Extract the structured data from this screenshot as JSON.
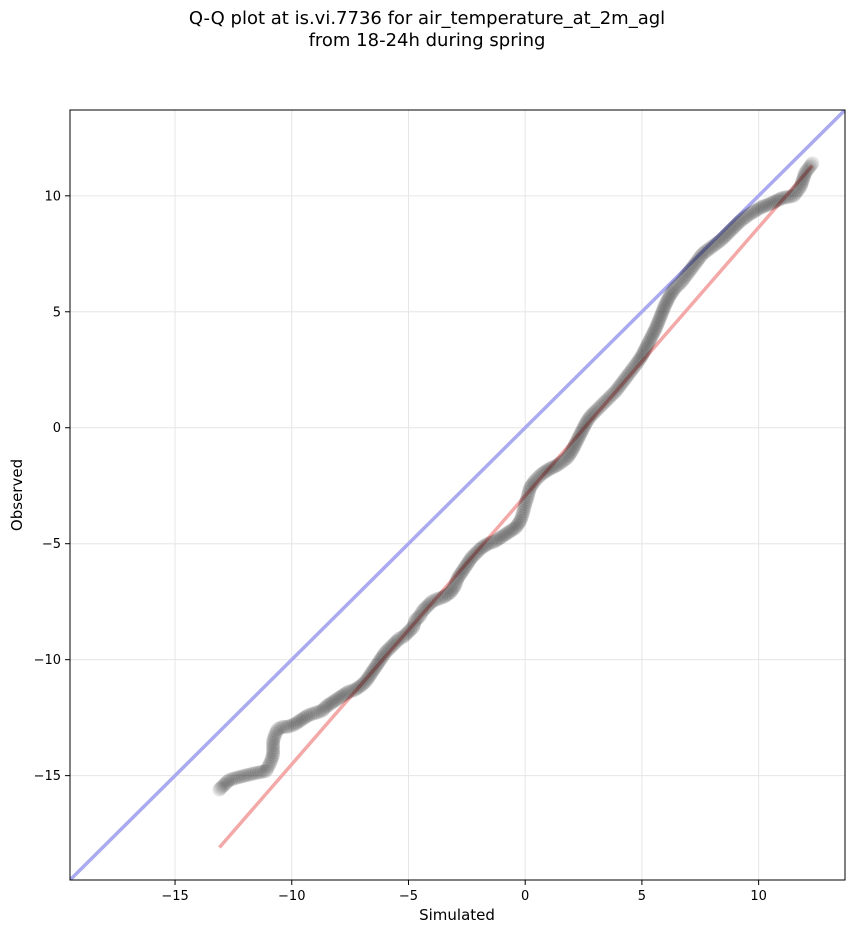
{
  "chart_data": {
    "type": "scatter",
    "title_line1": "Q-Q plot at is.vi.7736 for air_temperature_at_2m_agl",
    "title_line2": "from 18-24h during spring",
    "xlabel": "Simulated",
    "ylabel": "Observed",
    "xlim": [
      -19.5,
      13.7
    ],
    "ylim": [
      -19.5,
      13.7
    ],
    "x_ticks": [
      -15,
      -10,
      -5,
      0,
      5,
      10
    ],
    "y_ticks": [
      -15,
      -10,
      -5,
      0,
      5,
      10
    ],
    "x_tick_labels": [
      "−15",
      "−10",
      "−5",
      "0",
      "5",
      "10"
    ],
    "y_tick_labels": [
      "−15",
      "−10",
      "−5",
      "0",
      "5",
      "10"
    ],
    "grid": true,
    "reference_lines": [
      {
        "kind": "identity",
        "color": "#aaaaf0",
        "from": [
          -19.5,
          -19.5
        ],
        "to": [
          13.7,
          13.7
        ]
      },
      {
        "kind": "fit",
        "color": "#f4a9a9",
        "from": [
          -13.1,
          -18.1
        ],
        "to": [
          12.3,
          11.3
        ]
      }
    ],
    "marker_color": "#000000",
    "points": [
      [
        -13.1,
        -15.6
      ],
      [
        -12.9,
        -15.4
      ],
      [
        -12.7,
        -15.2
      ],
      [
        -12.4,
        -15.1
      ],
      [
        -12.0,
        -15.0
      ],
      [
        -11.6,
        -14.9
      ],
      [
        -11.1,
        -14.8
      ],
      [
        -11.0,
        -14.6
      ],
      [
        -10.9,
        -14.4
      ],
      [
        -10.8,
        -14.1
      ],
      [
        -10.8,
        -13.8
      ],
      [
        -10.8,
        -13.5
      ],
      [
        -10.7,
        -13.2
      ],
      [
        -10.6,
        -13.0
      ],
      [
        -10.4,
        -12.9
      ],
      [
        -10.2,
        -12.9
      ],
      [
        -9.9,
        -12.8
      ],
      [
        -9.6,
        -12.6
      ],
      [
        -9.3,
        -12.4
      ],
      [
        -9.0,
        -12.3
      ],
      [
        -8.7,
        -12.2
      ],
      [
        -8.5,
        -12.0
      ],
      [
        -8.2,
        -11.8
      ],
      [
        -7.9,
        -11.6
      ],
      [
        -7.6,
        -11.4
      ],
      [
        -7.3,
        -11.3
      ],
      [
        -7.0,
        -11.1
      ],
      [
        -6.8,
        -10.9
      ],
      [
        -6.6,
        -10.6
      ],
      [
        -6.4,
        -10.3
      ],
      [
        -6.2,
        -10.0
      ],
      [
        -6.0,
        -9.7
      ],
      [
        -5.8,
        -9.5
      ],
      [
        -5.6,
        -9.3
      ],
      [
        -5.4,
        -9.1
      ],
      [
        -5.2,
        -9.0
      ],
      [
        -5.0,
        -8.8
      ],
      [
        -4.8,
        -8.6
      ],
      [
        -4.7,
        -8.3
      ],
      [
        -4.5,
        -8.1
      ],
      [
        -4.4,
        -7.9
      ],
      [
        -4.2,
        -7.7
      ],
      [
        -4.0,
        -7.5
      ],
      [
        -3.8,
        -7.4
      ],
      [
        -3.5,
        -7.3
      ],
      [
        -3.2,
        -7.1
      ],
      [
        -3.0,
        -6.8
      ],
      [
        -2.9,
        -6.5
      ],
      [
        -2.7,
        -6.2
      ],
      [
        -2.5,
        -5.9
      ],
      [
        -2.3,
        -5.6
      ],
      [
        -2.1,
        -5.4
      ],
      [
        -1.9,
        -5.2
      ],
      [
        -1.6,
        -5.0
      ],
      [
        -1.3,
        -4.9
      ],
      [
        -1.0,
        -4.7
      ],
      [
        -0.7,
        -4.5
      ],
      [
        -0.4,
        -4.3
      ],
      [
        -0.2,
        -4.0
      ],
      [
        -0.1,
        -3.7
      ],
      [
        0.0,
        -3.3
      ],
      [
        0.1,
        -3.0
      ],
      [
        0.2,
        -2.6
      ],
      [
        0.4,
        -2.3
      ],
      [
        0.7,
        -2.0
      ],
      [
        1.0,
        -1.8
      ],
      [
        1.4,
        -1.6
      ],
      [
        1.8,
        -1.3
      ],
      [
        2.0,
        -1.0
      ],
      [
        2.2,
        -0.6
      ],
      [
        2.4,
        -0.2
      ],
      [
        2.6,
        0.2
      ],
      [
        2.8,
        0.5
      ],
      [
        3.0,
        0.7
      ],
      [
        3.3,
        1.0
      ],
      [
        3.6,
        1.3
      ],
      [
        3.9,
        1.6
      ],
      [
        4.2,
        2.0
      ],
      [
        4.5,
        2.4
      ],
      [
        4.8,
        2.8
      ],
      [
        5.0,
        3.1
      ],
      [
        5.2,
        3.5
      ],
      [
        5.4,
        3.9
      ],
      [
        5.6,
        4.3
      ],
      [
        5.8,
        4.8
      ],
      [
        6.0,
        5.3
      ],
      [
        6.2,
        5.7
      ],
      [
        6.4,
        6.0
      ],
      [
        6.7,
        6.3
      ],
      [
        7.0,
        6.7
      ],
      [
        7.3,
        7.1
      ],
      [
        7.6,
        7.5
      ],
      [
        8.0,
        7.8
      ],
      [
        8.4,
        8.1
      ],
      [
        8.8,
        8.5
      ],
      [
        9.2,
        8.9
      ],
      [
        9.6,
        9.2
      ],
      [
        10.1,
        9.5
      ],
      [
        10.6,
        9.7
      ],
      [
        11.0,
        9.9
      ],
      [
        11.5,
        10.0
      ],
      [
        11.8,
        10.4
      ],
      [
        12.0,
        11.0
      ],
      [
        12.3,
        11.4
      ]
    ]
  }
}
